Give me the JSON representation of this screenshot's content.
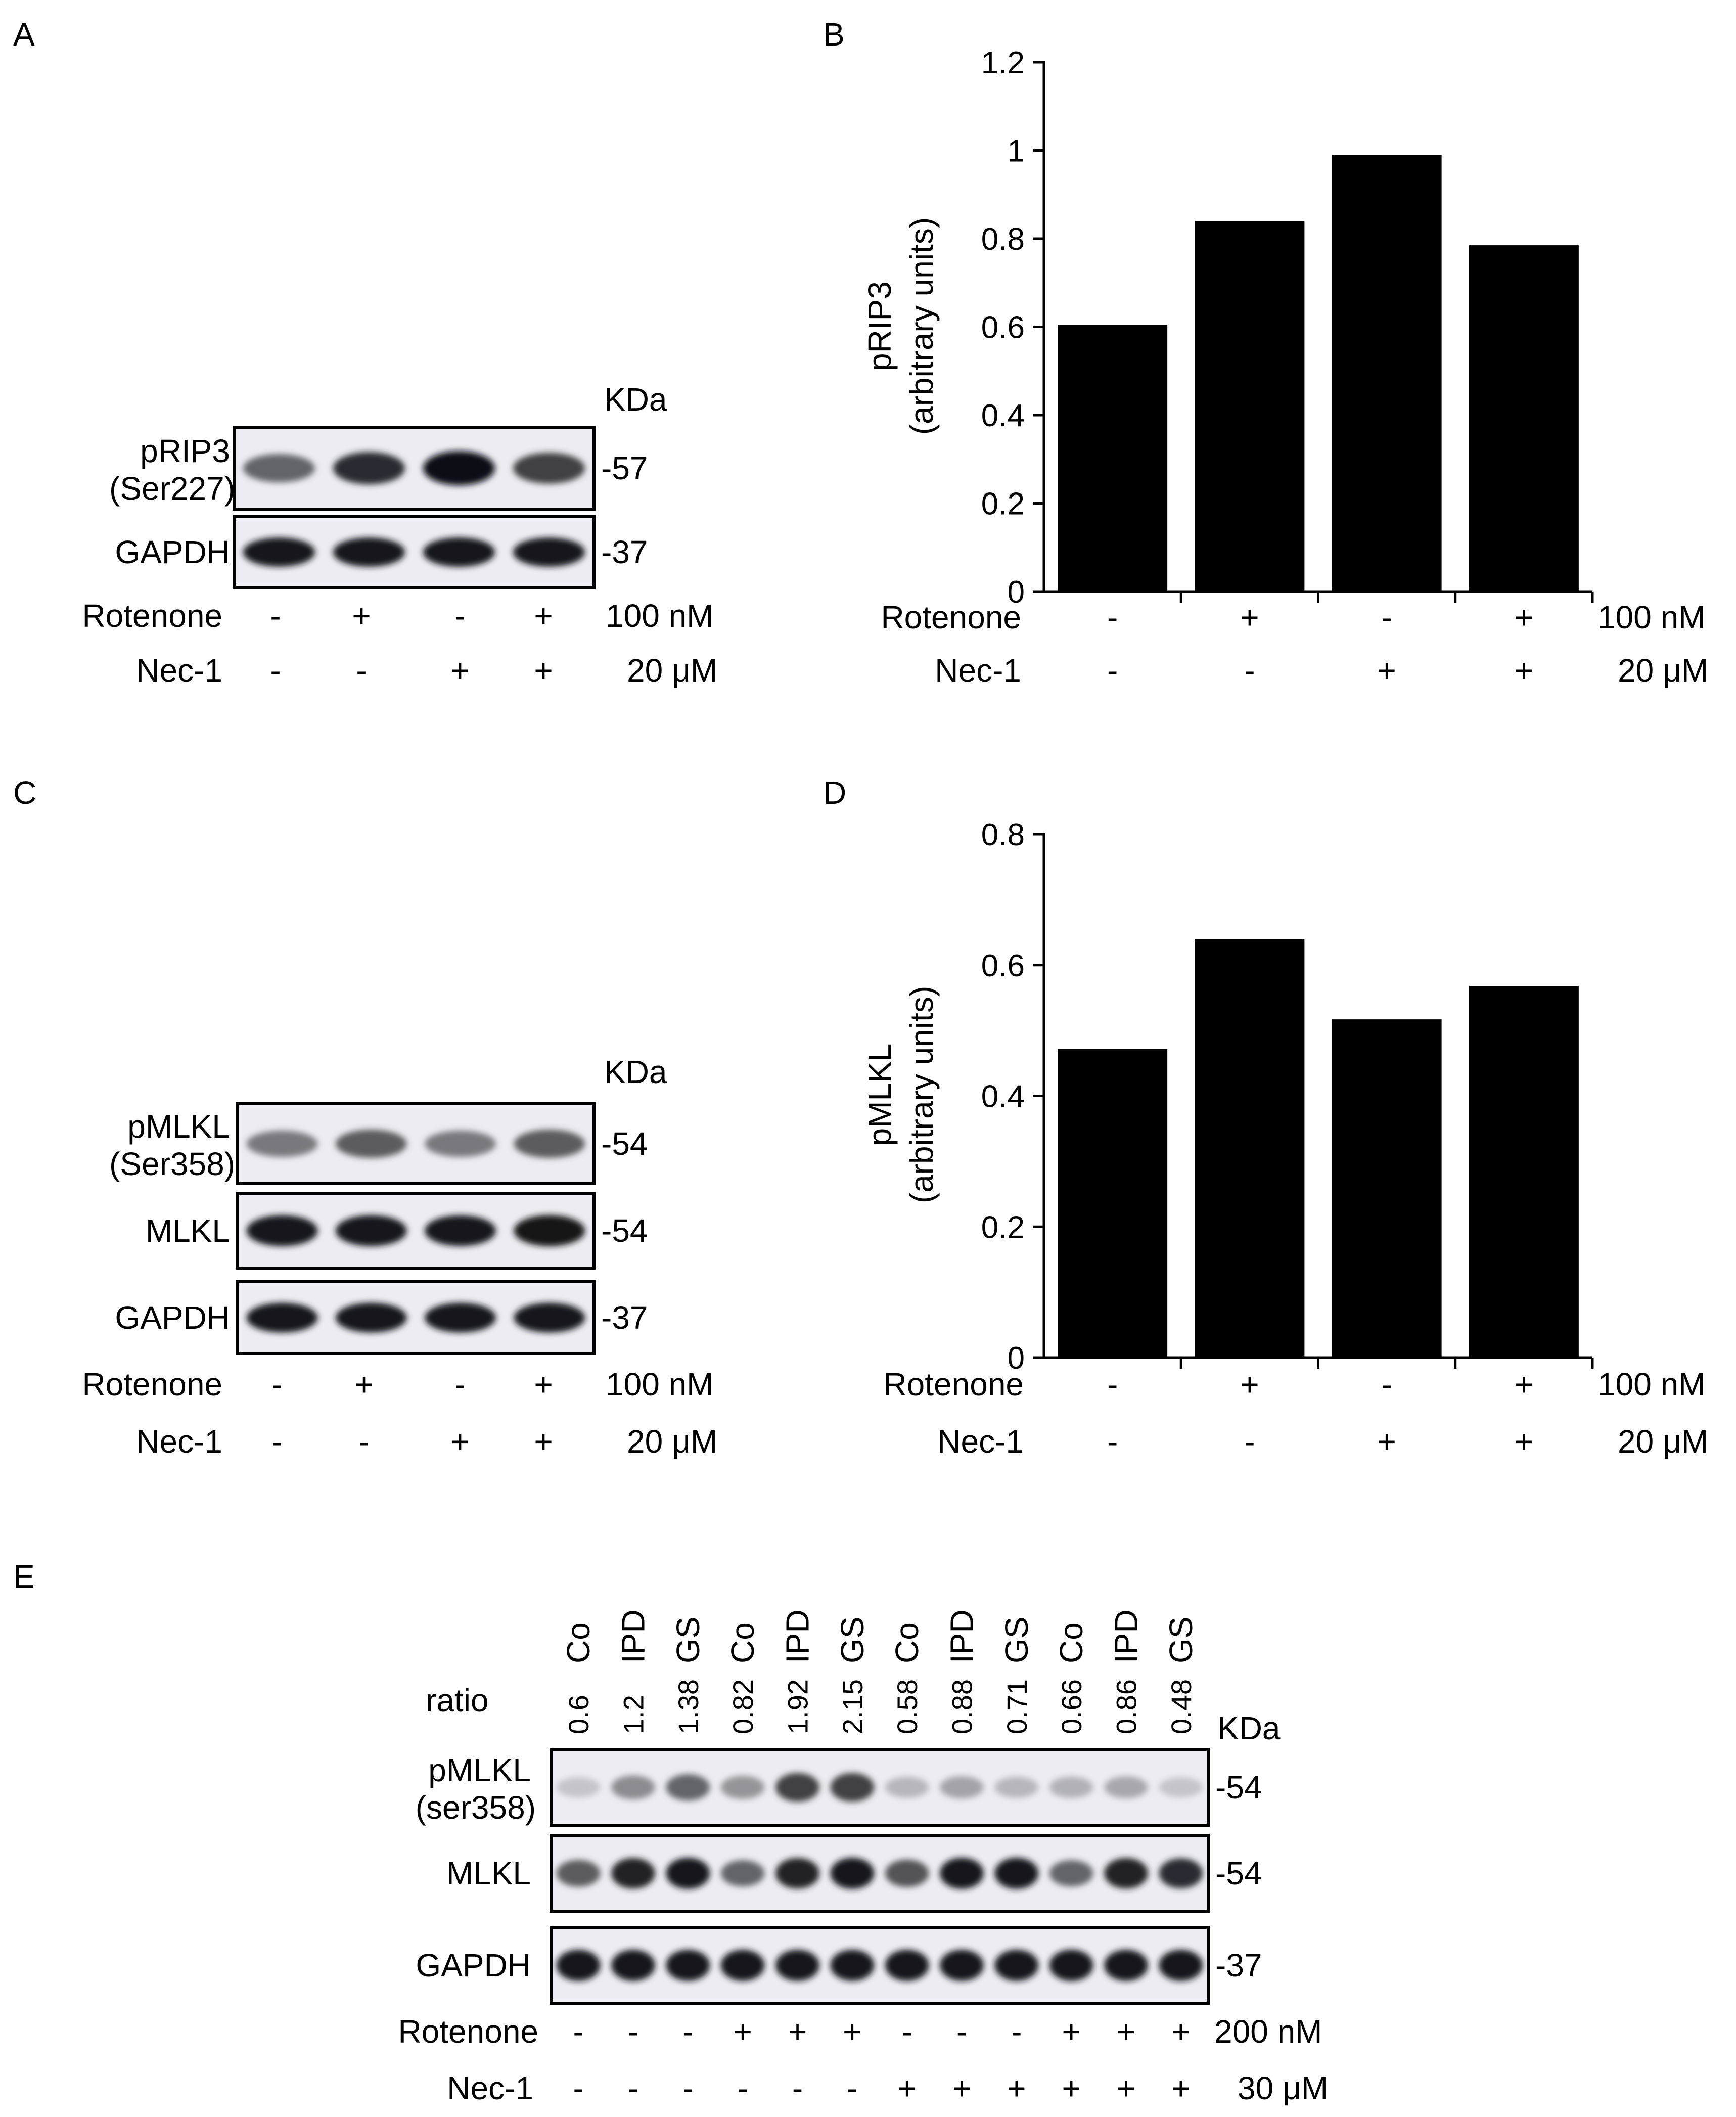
{
  "panels": {
    "a": "A",
    "b": "B",
    "c": "C",
    "d": "D",
    "e": "E"
  },
  "common": {
    "kda": "KDa",
    "rotenone": "Rotenone",
    "nec1": "Nec-1",
    "rot_conc": "100 nM",
    "nec_conc": "20 μM",
    "rot_signs": [
      "-",
      "+",
      "-",
      "+"
    ],
    "nec_signs": [
      "-",
      "-",
      "+",
      "+"
    ]
  },
  "blot_a": {
    "bands": [
      {
        "label1": "pRIP3",
        "label2": "(Ser227)",
        "mw": "-57",
        "intensity": [
          0.55,
          0.85,
          1.0,
          0.75
        ]
      },
      {
        "label1": "GAPDH",
        "label2": "",
        "mw": "-37",
        "intensity": [
          0.95,
          0.95,
          0.97,
          0.95
        ]
      }
    ]
  },
  "blot_c": {
    "bands": [
      {
        "label1": "pMLKL",
        "label2": "(Ser358)",
        "mw": "-54",
        "intensity": [
          0.45,
          0.6,
          0.45,
          0.6
        ]
      },
      {
        "label1": "MLKL",
        "label2": "",
        "mw": "-54",
        "intensity": [
          0.97,
          0.97,
          0.95,
          0.98
        ]
      },
      {
        "label1": "GAPDH",
        "label2": "",
        "mw": "-37",
        "intensity": [
          0.97,
          0.97,
          0.97,
          0.97
        ]
      }
    ]
  },
  "blot_e": {
    "lanes": [
      "Co",
      "IPD",
      "GS",
      "Co",
      "IPD",
      "GS",
      "Co",
      "IPD",
      "GS",
      "Co",
      "IPD",
      "GS"
    ],
    "ratio_label": "ratio",
    "ratios": [
      "0.6",
      "1.2",
      "1.38",
      "0.82",
      "1.92",
      "2.15",
      "0.58",
      "0.88",
      "0.71",
      "0.66",
      "0.86",
      "0.48"
    ],
    "kda": "KDa",
    "bands": [
      {
        "label1": "pMLKL",
        "label2": "(ser358)",
        "mw": "-54",
        "intensity": [
          0.05,
          0.35,
          0.55,
          0.3,
          0.75,
          0.75,
          0.12,
          0.22,
          0.12,
          0.15,
          0.2,
          0.05
        ]
      },
      {
        "label1": "MLKL",
        "label2": "",
        "mw": "-54",
        "intensity": [
          0.6,
          0.9,
          0.95,
          0.55,
          0.9,
          0.95,
          0.65,
          0.95,
          0.95,
          0.55,
          0.9,
          0.85
        ]
      },
      {
        "label1": "GAPDH",
        "label2": "",
        "mw": "-37",
        "intensity": [
          0.95,
          0.95,
          0.95,
          0.95,
          0.95,
          0.95,
          0.95,
          0.95,
          0.95,
          0.97,
          0.95,
          0.95
        ]
      }
    ],
    "rotenone": "Rotenone",
    "nec1": "Nec-1",
    "rot_signs": [
      "-",
      "-",
      "-",
      "+",
      "+",
      "+",
      "-",
      "-",
      "-",
      "+",
      "+",
      "+"
    ],
    "nec_signs": [
      "-",
      "-",
      "-",
      "-",
      "-",
      "-",
      "+",
      "+",
      "+",
      "+",
      "+",
      "+"
    ],
    "rot_conc": "200 nM",
    "nec_conc": "30 μM"
  },
  "chart_data": [
    {
      "type": "bar",
      "panel": "B",
      "ylabel": [
        "pRIP3",
        "(arbitrary units)"
      ],
      "ylim": [
        0,
        1.2
      ],
      "yticks": [
        "0",
        "0.2",
        "0.4",
        "0.6",
        "0.8",
        "1",
        "1.2"
      ],
      "values": [
        0.605,
        0.84,
        0.99,
        0.785
      ],
      "rotenone": [
        "-",
        "+",
        "-",
        "+"
      ],
      "nec1": [
        "-",
        "-",
        "+",
        "+"
      ]
    },
    {
      "type": "bar",
      "panel": "D",
      "ylabel": [
        "pMLKL",
        "(arbitrary units)"
      ],
      "ylim": [
        0,
        0.8
      ],
      "yticks": [
        "0",
        "0.2",
        "0.4",
        "0.6",
        "0.8"
      ],
      "values": [
        0.472,
        0.64,
        0.517,
        0.568
      ],
      "rotenone": [
        "-",
        "+",
        "-",
        "+"
      ],
      "nec1": [
        "-",
        "-",
        "+",
        "+"
      ]
    }
  ]
}
